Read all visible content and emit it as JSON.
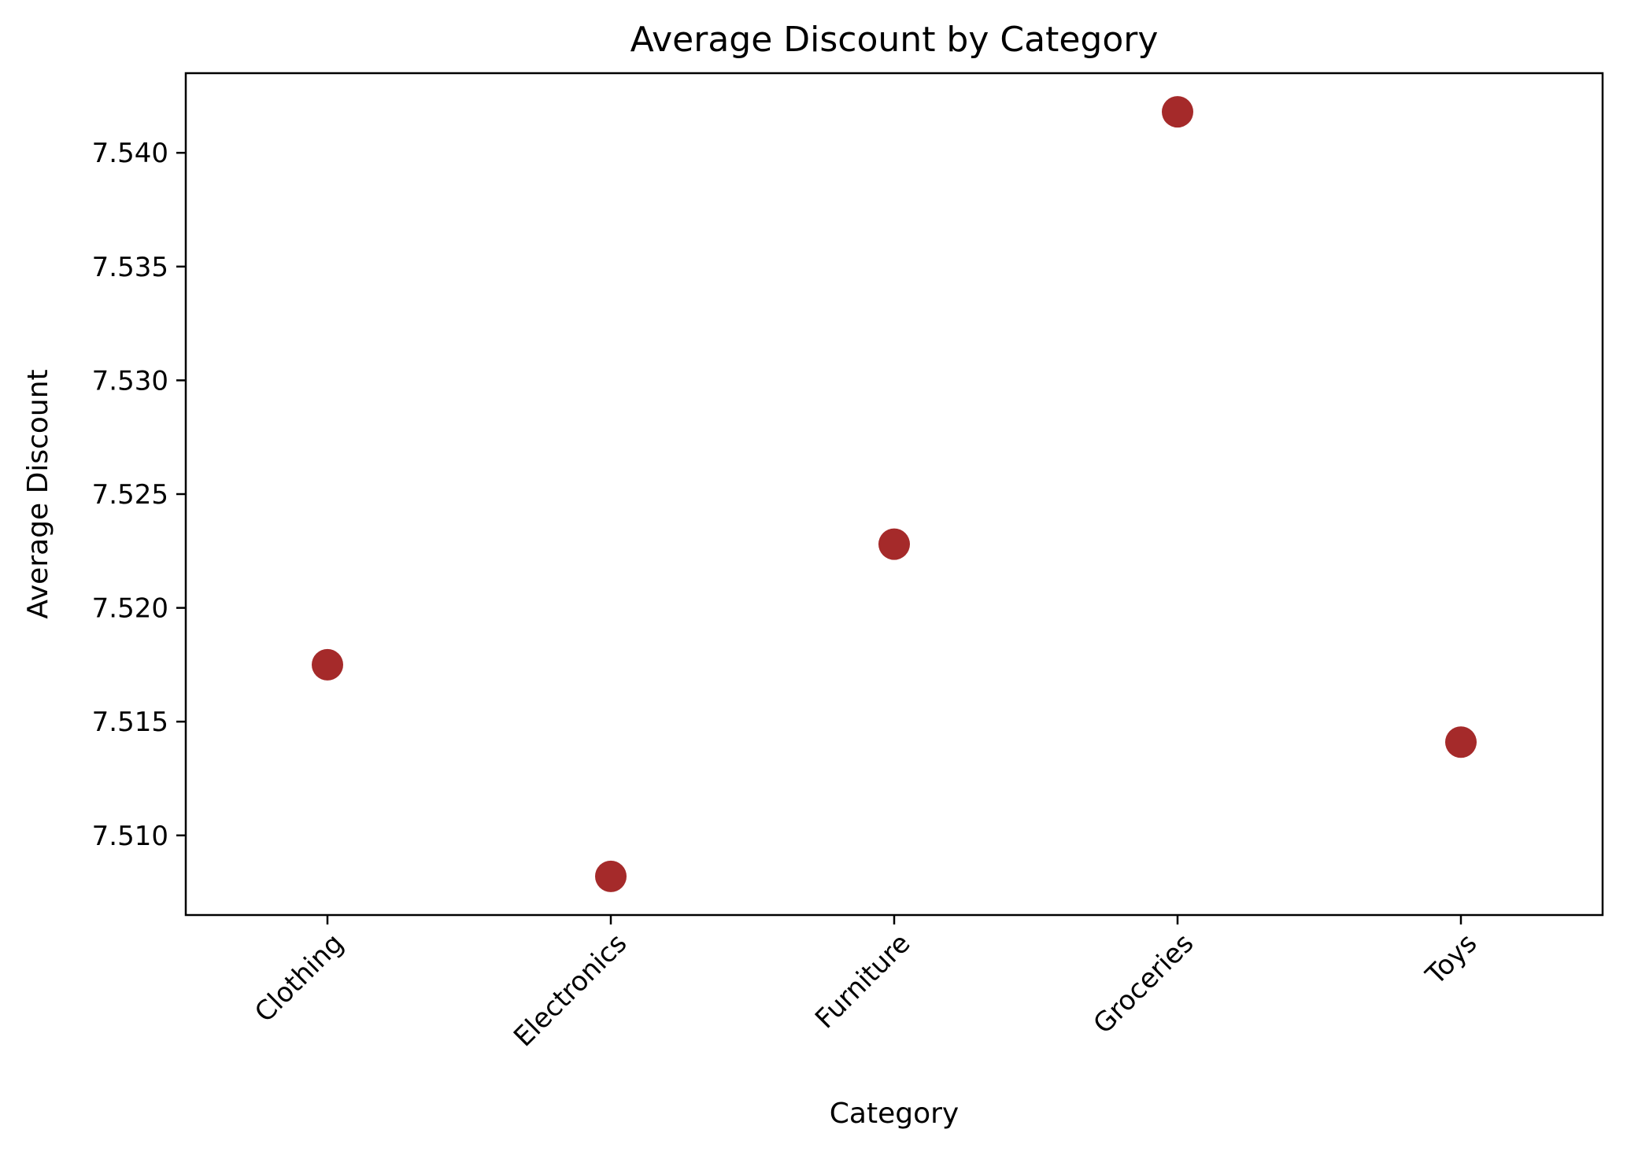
{
  "chart_data": {
    "type": "scatter",
    "title": "Average Discount by Category",
    "xlabel": "Category",
    "ylabel": "Average Discount",
    "categories": [
      "Clothing",
      "Electronics",
      "Furniture",
      "Groceries",
      "Toys"
    ],
    "values": [
      7.5175,
      7.5082,
      7.5228,
      7.5418,
      7.5141
    ],
    "ylim": [
      7.5065,
      7.5435
    ],
    "yticks": [
      7.51,
      7.515,
      7.52,
      7.525,
      7.53,
      7.535,
      7.54
    ],
    "ytick_labels": [
      "7.510",
      "7.515",
      "7.520",
      "7.525",
      "7.530",
      "7.535",
      "7.540"
    ],
    "marker_color": "#a52a2a",
    "grid": false,
    "legend": "none"
  }
}
